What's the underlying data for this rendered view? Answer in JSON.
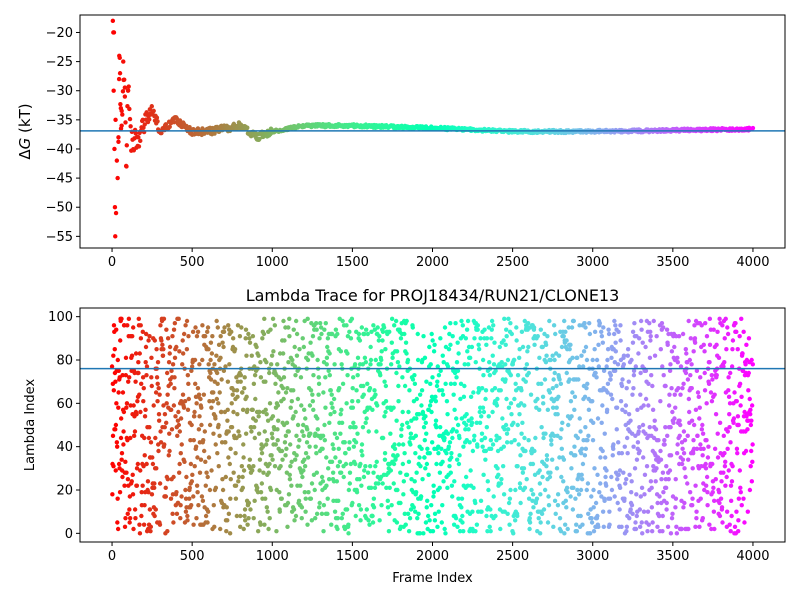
{
  "chart_data": [
    {
      "type": "scatter",
      "title": "",
      "xlabel": "",
      "ylabel": "ΔG (kT)",
      "ylabel_parts": {
        "delta": "Δ",
        "var": "G",
        "unit": " (kT)"
      },
      "xlim": [
        -200,
        4200
      ],
      "ylim": [
        -57,
        -17
      ],
      "x_ticks": [
        0,
        500,
        1000,
        1500,
        2000,
        2500,
        3000,
        3500,
        4000
      ],
      "y_ticks": [
        -20,
        -25,
        -30,
        -35,
        -40,
        -45,
        -50,
        -55
      ],
      "hline": -36.9,
      "hline_color": "#1f77b4",
      "colormap": "rainbow (red at frame 0 to violet at frame 4000)",
      "grid": false,
      "n_points": 4000,
      "series": [
        {
          "points_note": "running free-energy estimate per frame",
          "early_frames": [
            [
              5,
              -18
            ],
            [
              8,
              -20
            ],
            [
              10,
              -30
            ],
            [
              12,
              -20
            ],
            [
              15,
              -40
            ],
            [
              18,
              -50
            ],
            [
              20,
              -55
            ],
            [
              22,
              -35
            ],
            [
              25,
              -51
            ],
            [
              30,
              -42
            ],
            [
              35,
              -45
            ],
            [
              40,
              -38
            ],
            [
              45,
              -24
            ],
            [
              50,
              -27
            ],
            [
              55,
              -33
            ],
            [
              60,
              -36
            ],
            [
              70,
              -25
            ],
            [
              80,
              -31
            ],
            [
              90,
              -43
            ],
            [
              100,
              -30
            ],
            [
              120,
              -38
            ],
            [
              150,
              -39
            ],
            [
              200,
              -36
            ],
            [
              250,
              -33
            ],
            [
              300,
              -37
            ],
            [
              400,
              -35
            ],
            [
              500,
              -37
            ],
            [
              600,
              -37
            ],
            [
              800,
              -36
            ],
            [
              900,
              -38
            ],
            [
              1000,
              -37
            ],
            [
              1200,
              -36
            ],
            [
              1500,
              -36
            ],
            [
              2000,
              -36.4
            ],
            [
              2500,
              -37
            ],
            [
              3000,
              -37
            ],
            [
              3500,
              -36.8
            ],
            [
              4000,
              -36.6
            ]
          ]
        }
      ]
    },
    {
      "type": "scatter",
      "title": "Lambda Trace for PROJ18434/RUN21/CLONE13",
      "xlabel": "Frame Index",
      "ylabel": "Lambda Index",
      "xlim": [
        -200,
        4200
      ],
      "ylim": [
        -4,
        104
      ],
      "x_ticks": [
        0,
        500,
        1000,
        1500,
        2000,
        2500,
        3000,
        3500,
        4000
      ],
      "y_ticks": [
        0,
        20,
        40,
        60,
        80,
        100
      ],
      "hline": 76,
      "hline_color": "#1f77b4",
      "lambda_range": [
        0,
        99
      ],
      "colormap": "rainbow (red at frame 0 to violet at frame 4000)",
      "grid": false,
      "n_points": 4000
    }
  ]
}
